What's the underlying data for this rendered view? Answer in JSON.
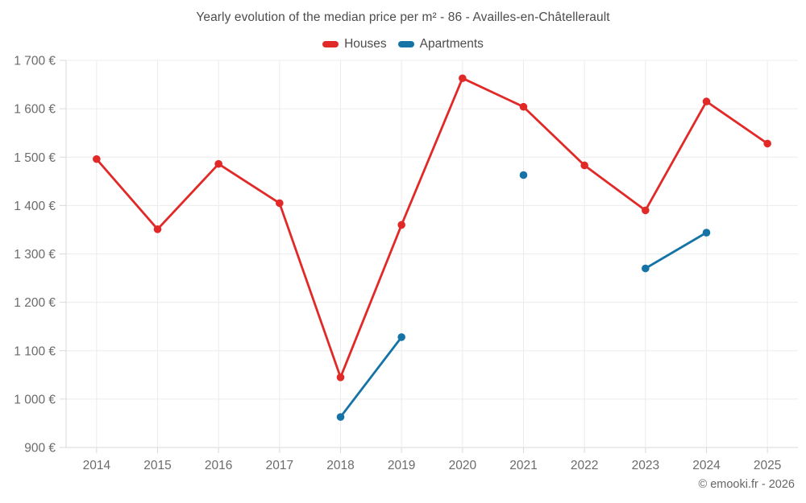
{
  "title": "Yearly evolution of the median price per m² - 86 - Availles-en-Châtellerault",
  "footer": "© emooki.fr - 2026",
  "legend": [
    {
      "label": "Houses",
      "color": "#e12928"
    },
    {
      "label": "Apartments",
      "color": "#1673a6"
    }
  ],
  "colors": {
    "houses": "#e12928",
    "apartments": "#1673a6",
    "grid": "#ececec",
    "axis": "#d9d9d9",
    "tick_text": "#6b6b6b"
  },
  "chart_data": {
    "type": "line",
    "title": "Yearly evolution of the median price per m² - 86 - Availles-en-Châtellerault",
    "x": [
      2014,
      2015,
      2016,
      2017,
      2018,
      2019,
      2020,
      2021,
      2022,
      2023,
      2024,
      2025
    ],
    "series": [
      {
        "name": "Houses",
        "color": "#e12928",
        "values": [
          1496,
          1351,
          1486,
          1405,
          1045,
          1360,
          1663,
          1604,
          1483,
          1390,
          1615,
          1528
        ]
      },
      {
        "name": "Apartments",
        "color": "#1673a6",
        "values": [
          null,
          null,
          null,
          null,
          963,
          1128,
          null,
          1463,
          null,
          1270,
          1344,
          null
        ]
      }
    ],
    "xlabel": "",
    "ylabel": "",
    "ylim": [
      900,
      1700
    ],
    "ytick_step": 100,
    "y_suffix": "€",
    "grid": true,
    "legend_position": "top"
  }
}
